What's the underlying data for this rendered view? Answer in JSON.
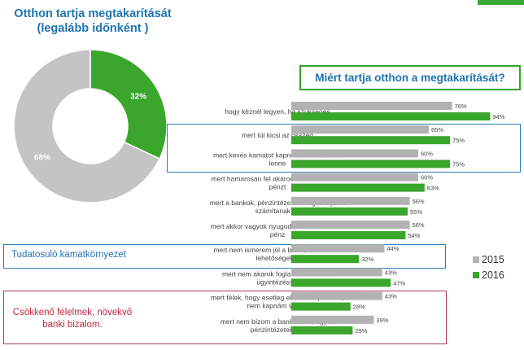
{
  "title": "Otthon tartja megtakarítását (legalább időnként )",
  "logo_text": "",
  "donut": {
    "slices": [
      {
        "label": "32%",
        "value": 32,
        "color": "#3aa62b"
      },
      {
        "label": "68%",
        "value": 68,
        "color": "#c4c4c4"
      }
    ]
  },
  "callout": "Miért tartja otthon a megtakarítását?",
  "notes": {
    "awareness": "Tudatosuló kamatkörnyezet",
    "trust": "Csökkenő félelmek, növekvő banki bizalom."
  },
  "colors": {
    "series_2015": "#b2b2b2",
    "series_2016": "#3aa62b",
    "title": "#1e74b3"
  },
  "chart_data": {
    "type": "bar",
    "orientation": "horizontal",
    "categories": [
      "hogy kéznél legyen, ha szükséges",
      "mert túl kicsi az összeg",
      "mert kevés kamatot kapnék, kicsi hozama lenne",
      "mert hamarosan fel akarom használni ezt a pénzt",
      "mert a bankok, pénzintézetek magas díjakat számítanak fel",
      "mert akkor vagyok nyugodt, ha nálam van a pénz",
      "mert nem ismerem jól a banki, befektetési lehetőségeket",
      "mert nem akarok foglalkozni a banki ügyintézéssel",
      "mert félek, hogy esetleg elúszna a pénzem, nem kapnám vissza",
      "mert nem bízom a bankokban, egyéb pénzintézetekben"
    ],
    "series": [
      {
        "name": "2015",
        "values": [
          76,
          65,
          60,
          60,
          56,
          56,
          44,
          43,
          43,
          39
        ],
        "labels": [
          "76%",
          "65%",
          "60%",
          "60%",
          "56%",
          "56%",
          "44%",
          "43%",
          "43%",
          "39%"
        ]
      },
      {
        "name": "2016",
        "values": [
          94,
          75,
          75,
          63,
          55,
          54,
          32,
          47,
          28,
          29
        ],
        "labels": [
          "94%",
          "75%",
          "75%",
          "63%",
          "55%",
          "54%",
          "32%",
          "47%",
          "28%",
          "29%"
        ]
      }
    ],
    "xlim": [
      0,
      100
    ],
    "legend": "right"
  }
}
